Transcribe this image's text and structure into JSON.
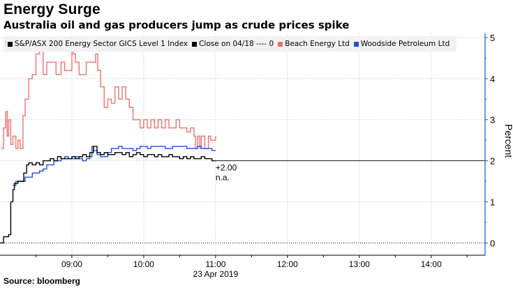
{
  "title": "Energy Surge",
  "subtitle": "Australia oil and gas producers jump as crude prices spike",
  "source": "Source: bloomberg",
  "legend": [
    {
      "label": "S&P/ASX 200 Energy Sector GICS Level 1 Index",
      "color": "#000000"
    },
    {
      "label": "Close on 04/18 ---- 0",
      "color": "#000000"
    },
    {
      "label": "Beach Energy Ltd",
      "color": "#f07070"
    },
    {
      "label": "Woodside Petroleum Ltd",
      "color": "#1f4fd8"
    }
  ],
  "annotation": {
    "value": "+2.00",
    "note": "n.a."
  },
  "chart_data": {
    "type": "line",
    "xlabel": "23 Apr 2019",
    "ylabel": "Percent",
    "x_ticks": [
      "09:00",
      "10:00",
      "11:00",
      "12:00",
      "13:00",
      "14:00"
    ],
    "x_range_hours": [
      8.0,
      14.75
    ],
    "y_ticks": [
      0,
      1,
      2,
      3,
      4,
      5
    ],
    "ylim": [
      -0.3,
      5.1
    ],
    "reference_lines": [
      {
        "name": "Close on 04/18",
        "value": 0,
        "style": "dotted"
      },
      {
        "name": "last value",
        "value": 2.0,
        "style": "solid"
      }
    ],
    "series": [
      {
        "name": "Beach Energy Ltd",
        "color": "#f07070",
        "points": [
          [
            8.02,
            2.3
          ],
          [
            8.05,
            2.8
          ],
          [
            8.08,
            3.2
          ],
          [
            8.1,
            2.6
          ],
          [
            8.12,
            3.0
          ],
          [
            8.15,
            2.4
          ],
          [
            8.18,
            2.6
          ],
          [
            8.22,
            2.3
          ],
          [
            8.25,
            2.5
          ],
          [
            8.28,
            2.3
          ],
          [
            8.32,
            3.1
          ],
          [
            8.35,
            3.5
          ],
          [
            8.4,
            4.0
          ],
          [
            8.45,
            4.1
          ],
          [
            8.5,
            4.6
          ],
          [
            8.55,
            4.7
          ],
          [
            8.6,
            4.1
          ],
          [
            8.65,
            4.4
          ],
          [
            8.72,
            4.4
          ],
          [
            8.78,
            4.1
          ],
          [
            8.82,
            4.1
          ],
          [
            8.85,
            4.4
          ],
          [
            8.9,
            4.2
          ],
          [
            9.0,
            4.7
          ],
          [
            9.02,
            4.6
          ],
          [
            9.05,
            4.4
          ],
          [
            9.1,
            4.1
          ],
          [
            9.15,
            4.1
          ],
          [
            9.2,
            4.4
          ],
          [
            9.25,
            4.4
          ],
          [
            9.3,
            4.4
          ],
          [
            9.33,
            4.6
          ],
          [
            9.36,
            4.2
          ],
          [
            9.4,
            3.8
          ],
          [
            9.45,
            3.3
          ],
          [
            9.5,
            3.5
          ],
          [
            9.55,
            3.4
          ],
          [
            9.6,
            3.8
          ],
          [
            9.65,
            3.5
          ],
          [
            9.7,
            3.8
          ],
          [
            9.75,
            3.5
          ],
          [
            9.8,
            3.3
          ],
          [
            9.85,
            3.0
          ],
          [
            9.9,
            3.0
          ],
          [
            9.95,
            2.8
          ],
          [
            10.0,
            3.0
          ],
          [
            10.05,
            2.8
          ],
          [
            10.1,
            3.0
          ],
          [
            10.15,
            2.8
          ],
          [
            10.2,
            3.0
          ],
          [
            10.25,
            2.8
          ],
          [
            10.3,
            3.0
          ],
          [
            10.35,
            2.8
          ],
          [
            10.4,
            2.8
          ],
          [
            10.45,
            3.0
          ],
          [
            10.5,
            2.8
          ],
          [
            10.55,
            2.8
          ],
          [
            10.6,
            2.7
          ],
          [
            10.65,
            2.8
          ],
          [
            10.7,
            2.6
          ],
          [
            10.72,
            2.3
          ],
          [
            10.75,
            2.6
          ],
          [
            10.78,
            2.3
          ],
          [
            10.8,
            2.6
          ],
          [
            10.85,
            2.3
          ],
          [
            10.9,
            2.6
          ],
          [
            10.93,
            2.5
          ],
          [
            10.97,
            2.5
          ],
          [
            11.0,
            2.6
          ]
        ]
      },
      {
        "name": "Woodside Petroleum Ltd",
        "color": "#1f4fd8",
        "points": [
          [
            8.18,
            1.4
          ],
          [
            8.22,
            1.5
          ],
          [
            8.3,
            1.5
          ],
          [
            8.35,
            1.6
          ],
          [
            8.4,
            1.6
          ],
          [
            8.45,
            1.7
          ],
          [
            8.5,
            1.7
          ],
          [
            8.55,
            1.75
          ],
          [
            8.6,
            1.8
          ],
          [
            8.65,
            1.9
          ],
          [
            8.7,
            1.9
          ],
          [
            8.75,
            2.0
          ],
          [
            8.8,
            2.0
          ],
          [
            8.85,
            2.05
          ],
          [
            8.9,
            2.1
          ],
          [
            8.95,
            2.05
          ],
          [
            9.0,
            2.05
          ],
          [
            9.05,
            2.1
          ],
          [
            9.1,
            2.05
          ],
          [
            9.15,
            2.0
          ],
          [
            9.2,
            2.05
          ],
          [
            9.25,
            2.1
          ],
          [
            9.28,
            2.35
          ],
          [
            9.3,
            2.25
          ],
          [
            9.35,
            2.15
          ],
          [
            9.4,
            2.1
          ],
          [
            9.45,
            2.1
          ],
          [
            9.5,
            2.2
          ],
          [
            9.55,
            2.3
          ],
          [
            9.6,
            2.3
          ],
          [
            9.65,
            2.35
          ],
          [
            9.7,
            2.3
          ],
          [
            9.75,
            2.3
          ],
          [
            9.8,
            2.3
          ],
          [
            9.85,
            2.25
          ],
          [
            9.9,
            2.3
          ],
          [
            9.95,
            2.35
          ],
          [
            10.0,
            2.35
          ],
          [
            10.05,
            2.3
          ],
          [
            10.1,
            2.35
          ],
          [
            10.15,
            2.35
          ],
          [
            10.2,
            2.35
          ],
          [
            10.25,
            2.35
          ],
          [
            10.3,
            2.3
          ],
          [
            10.35,
            2.3
          ],
          [
            10.4,
            2.35
          ],
          [
            10.45,
            2.35
          ],
          [
            10.5,
            2.35
          ],
          [
            10.55,
            2.35
          ],
          [
            10.6,
            2.3
          ],
          [
            10.65,
            2.3
          ],
          [
            10.7,
            2.3
          ],
          [
            10.75,
            2.35
          ],
          [
            10.8,
            2.3
          ],
          [
            10.85,
            2.3
          ],
          [
            10.9,
            2.3
          ],
          [
            10.95,
            2.25
          ],
          [
            11.0,
            2.25
          ]
        ]
      },
      {
        "name": "S&P/ASX 200 Energy Sector GICS Level 1 Index",
        "color": "#000000",
        "points": [
          [
            8.0,
            0.0
          ],
          [
            8.05,
            0.15
          ],
          [
            8.12,
            0.2
          ],
          [
            8.15,
            1.0
          ],
          [
            8.18,
            1.3
          ],
          [
            8.2,
            1.45
          ],
          [
            8.25,
            1.5
          ],
          [
            8.3,
            1.5
          ],
          [
            8.33,
            1.7
          ],
          [
            8.37,
            1.9
          ],
          [
            8.4,
            1.95
          ],
          [
            8.45,
            1.9
          ],
          [
            8.5,
            1.95
          ],
          [
            8.55,
            1.9
          ],
          [
            8.6,
            2.0
          ],
          [
            8.65,
            2.0
          ],
          [
            8.7,
            2.05
          ],
          [
            8.75,
            2.0
          ],
          [
            8.8,
            2.1
          ],
          [
            8.85,
            2.05
          ],
          [
            8.9,
            2.05
          ],
          [
            8.95,
            2.05
          ],
          [
            9.0,
            2.1
          ],
          [
            9.05,
            2.05
          ],
          [
            9.1,
            2.1
          ],
          [
            9.15,
            2.15
          ],
          [
            9.2,
            2.1
          ],
          [
            9.25,
            2.2
          ],
          [
            9.3,
            2.35
          ],
          [
            9.35,
            2.2
          ],
          [
            9.4,
            2.15
          ],
          [
            9.45,
            2.2
          ],
          [
            9.5,
            2.15
          ],
          [
            9.55,
            2.15
          ],
          [
            9.6,
            2.2
          ],
          [
            9.65,
            2.2
          ],
          [
            9.7,
            2.15
          ],
          [
            9.75,
            2.2
          ],
          [
            9.8,
            2.1
          ],
          [
            9.85,
            2.15
          ],
          [
            9.9,
            2.2
          ],
          [
            9.95,
            2.15
          ],
          [
            10.0,
            2.1
          ],
          [
            10.05,
            2.15
          ],
          [
            10.1,
            2.15
          ],
          [
            10.15,
            2.1
          ],
          [
            10.2,
            2.15
          ],
          [
            10.25,
            2.1
          ],
          [
            10.3,
            2.1
          ],
          [
            10.35,
            2.15
          ],
          [
            10.4,
            2.1
          ],
          [
            10.45,
            2.1
          ],
          [
            10.5,
            2.05
          ],
          [
            10.55,
            2.1
          ],
          [
            10.6,
            2.05
          ],
          [
            10.65,
            2.1
          ],
          [
            10.7,
            2.05
          ],
          [
            10.75,
            2.05
          ],
          [
            10.8,
            2.1
          ],
          [
            10.85,
            2.05
          ],
          [
            10.9,
            2.05
          ],
          [
            10.95,
            2.0
          ],
          [
            11.0,
            2.0
          ]
        ]
      }
    ]
  }
}
